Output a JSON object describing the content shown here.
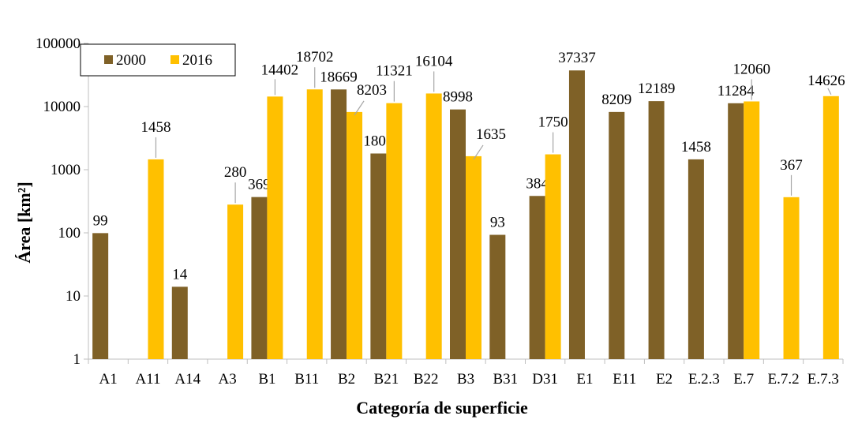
{
  "chart_data": {
    "type": "bar",
    "title": "",
    "xlabel": "Categoría de superficie",
    "ylabel": "Área [km²]",
    "yscale": "log",
    "ylim": [
      1,
      100000
    ],
    "yticks": [
      "1",
      "10",
      "100",
      "1000",
      "10000",
      "100000"
    ],
    "grid": false,
    "legend_position": "top-left",
    "categories": [
      "A1",
      "A11",
      "A14",
      "A3",
      "B1",
      "B11",
      "B2",
      "B21",
      "B22",
      "B3",
      "B31",
      "D31",
      "E1",
      "E11",
      "E2",
      "E.2.3",
      "E.7",
      "E.7.2",
      "E.7.3"
    ],
    "series": [
      {
        "name": "2000",
        "color": "#7f6127",
        "values": [
          99,
          null,
          14,
          null,
          369,
          null,
          18669,
          1805,
          null,
          8998,
          93,
          384,
          37337,
          8209,
          12189,
          1458,
          11284,
          null,
          null
        ]
      },
      {
        "name": "2016",
        "color": "#ffc000",
        "values": [
          null,
          1458,
          null,
          280,
          14402,
          18702,
          8203,
          11321,
          16104,
          1635,
          null,
          1750,
          null,
          null,
          null,
          null,
          12060,
          367,
          14626
        ]
      }
    ]
  }
}
